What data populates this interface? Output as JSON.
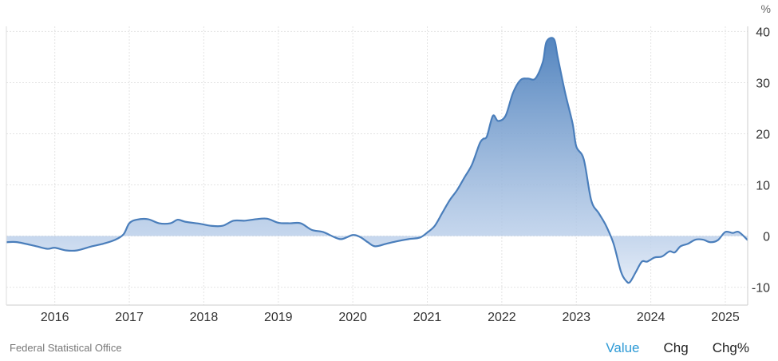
{
  "chart_data": {
    "type": "area",
    "unit": "%",
    "title": "",
    "xlabel": "",
    "ylabel": "",
    "ylim": [
      -13.5,
      41
    ],
    "xlim": [
      2015.35,
      2025.3
    ],
    "yticks": [
      40,
      30,
      20,
      10,
      0,
      -10
    ],
    "ytick_labels": [
      "40",
      "30",
      "20",
      "10",
      "0",
      "-10"
    ],
    "xticks": [
      2016.0,
      2017.0,
      2018.0,
      2019.0,
      2020.0,
      2021.0,
      2022.0,
      2023.0,
      2024.0,
      2025.0
    ],
    "xtick_labels": [
      "2016",
      "2017",
      "2018",
      "2019",
      "2020",
      "2021",
      "2022",
      "2023",
      "2024",
      "2025"
    ],
    "grid": true,
    "line_color": "#4a7ebb",
    "fill_top_color": "#4a7ebb",
    "fill_base_color": "#e6edf7",
    "series": [
      {
        "name": "",
        "points": [
          [
            2015.35,
            -1.2
          ],
          [
            2015.5,
            -1.2
          ],
          [
            2015.75,
            -2.0
          ],
          [
            2015.9,
            -2.5
          ],
          [
            2016.0,
            -2.3
          ],
          [
            2016.15,
            -2.8
          ],
          [
            2016.3,
            -2.8
          ],
          [
            2016.5,
            -2.0
          ],
          [
            2016.65,
            -1.5
          ],
          [
            2016.8,
            -0.8
          ],
          [
            2016.92,
            0.3
          ],
          [
            2017.0,
            2.5
          ],
          [
            2017.1,
            3.2
          ],
          [
            2017.25,
            3.3
          ],
          [
            2017.4,
            2.5
          ],
          [
            2017.55,
            2.5
          ],
          [
            2017.65,
            3.2
          ],
          [
            2017.75,
            2.8
          ],
          [
            2017.95,
            2.4
          ],
          [
            2018.1,
            2.0
          ],
          [
            2018.25,
            2.0
          ],
          [
            2018.4,
            3.0
          ],
          [
            2018.55,
            3.0
          ],
          [
            2018.7,
            3.3
          ],
          [
            2018.85,
            3.4
          ],
          [
            2019.0,
            2.6
          ],
          [
            2019.15,
            2.5
          ],
          [
            2019.3,
            2.5
          ],
          [
            2019.45,
            1.2
          ],
          [
            2019.6,
            0.8
          ],
          [
            2019.75,
            -0.2
          ],
          [
            2019.85,
            -0.6
          ],
          [
            2020.0,
            0.2
          ],
          [
            2020.1,
            -0.2
          ],
          [
            2020.2,
            -1.2
          ],
          [
            2020.3,
            -2.0
          ],
          [
            2020.45,
            -1.5
          ],
          [
            2020.6,
            -1.0
          ],
          [
            2020.75,
            -0.6
          ],
          [
            2020.9,
            -0.3
          ],
          [
            2021.0,
            0.7
          ],
          [
            2021.1,
            2.0
          ],
          [
            2021.2,
            4.5
          ],
          [
            2021.3,
            7.0
          ],
          [
            2021.4,
            9.0
          ],
          [
            2021.5,
            11.5
          ],
          [
            2021.6,
            14.0
          ],
          [
            2021.7,
            18.0
          ],
          [
            2021.75,
            19.0
          ],
          [
            2021.8,
            19.5
          ],
          [
            2021.88,
            23.5
          ],
          [
            2021.95,
            22.5
          ],
          [
            2022.05,
            23.5
          ],
          [
            2022.15,
            28.0
          ],
          [
            2022.25,
            30.5
          ],
          [
            2022.35,
            30.8
          ],
          [
            2022.45,
            30.8
          ],
          [
            2022.55,
            34.0
          ],
          [
            2022.6,
            38.0
          ],
          [
            2022.7,
            38.5
          ],
          [
            2022.75,
            35.0
          ],
          [
            2022.85,
            28.0
          ],
          [
            2022.95,
            22.0
          ],
          [
            2023.0,
            17.5
          ],
          [
            2023.1,
            15.0
          ],
          [
            2023.2,
            7.0
          ],
          [
            2023.3,
            4.5
          ],
          [
            2023.4,
            2.0
          ],
          [
            2023.5,
            -1.5
          ],
          [
            2023.6,
            -7.0
          ],
          [
            2023.67,
            -8.8
          ],
          [
            2023.72,
            -9.0
          ],
          [
            2023.8,
            -7.0
          ],
          [
            2023.88,
            -5.0
          ],
          [
            2023.95,
            -5.0
          ],
          [
            2024.05,
            -4.2
          ],
          [
            2024.15,
            -4.0
          ],
          [
            2024.25,
            -3.0
          ],
          [
            2024.32,
            -3.2
          ],
          [
            2024.4,
            -2.0
          ],
          [
            2024.5,
            -1.5
          ],
          [
            2024.6,
            -0.7
          ],
          [
            2024.7,
            -0.7
          ],
          [
            2024.8,
            -1.2
          ],
          [
            2024.9,
            -0.8
          ],
          [
            2025.0,
            0.8
          ],
          [
            2025.1,
            0.6
          ],
          [
            2025.18,
            0.8
          ],
          [
            2025.3,
            -0.8
          ]
        ]
      }
    ]
  },
  "footer": {
    "source": "Federal Statistical Office",
    "tabs": [
      {
        "label": "Value",
        "active": true
      },
      {
        "label": "Chg",
        "active": false
      },
      {
        "label": "Chg%",
        "active": false
      }
    ]
  }
}
